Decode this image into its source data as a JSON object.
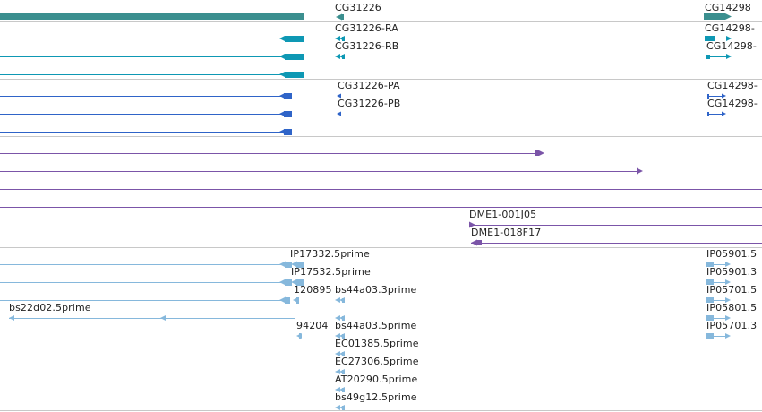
{
  "colors": {
    "gene": "#3b8f8f",
    "transcript": "#0e98b4",
    "protein": "#2f64c8",
    "clone": "#7b55a8",
    "est": "#86b8dc",
    "separator": "#c8c8c8",
    "text": "#222222"
  },
  "genes": [
    {
      "name": "CG31226"
    },
    {
      "name": "CG14298"
    }
  ],
  "transcripts": [
    {
      "name": "CG31226-RA"
    },
    {
      "name": "CG31226-RB"
    },
    {
      "name": "CG14298-"
    },
    {
      "name": "CG14298-"
    }
  ],
  "proteins": [
    {
      "name": "CG31226-PA"
    },
    {
      "name": "CG31226-PB"
    },
    {
      "name": "CG14298-"
    },
    {
      "name": "CG14298-"
    }
  ],
  "clones": [
    {
      "name": "DME1-001J05"
    },
    {
      "name": "DME1-018F17"
    }
  ],
  "ests": [
    {
      "name": "IP17332.5prime"
    },
    {
      "name": "IP17532.5prime"
    },
    {
      "name": "120895"
    },
    {
      "name": "bs22d02.5prime"
    },
    {
      "name": "94204"
    },
    {
      "name": "bs44a03.3prime"
    },
    {
      "name": "bs44a03.5prime"
    },
    {
      "name": "EC01385.5prime"
    },
    {
      "name": "EC27306.5prime"
    },
    {
      "name": "AT20290.5prime"
    },
    {
      "name": "bs49g12.5prime"
    },
    {
      "name": "IP05901.5"
    },
    {
      "name": "IP05901.3"
    },
    {
      "name": "IP05701.5"
    },
    {
      "name": "IP05801.5"
    },
    {
      "name": "IP05701.3"
    }
  ]
}
